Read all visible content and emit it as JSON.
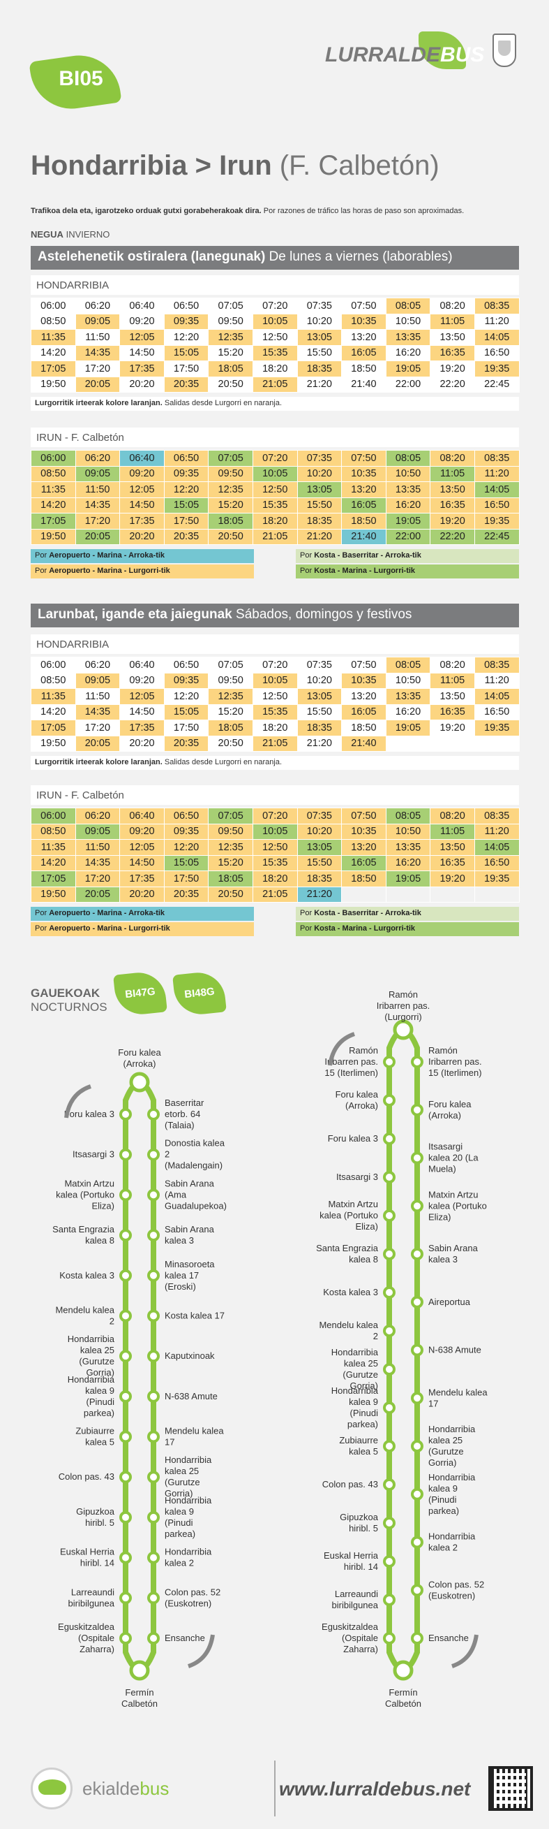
{
  "header": {
    "route_code": "BI05",
    "brand_left": "LURRALDE",
    "brand_right": "BUS"
  },
  "title": {
    "origin": "Hondarribia",
    "separator": ">",
    "destination": "Irun",
    "destination_detail": "(F. Calbetón)"
  },
  "notice": {
    "eu": "Trafikoa dela eta, igarotzeko orduak gutxi gorabeherakoak dira.",
    "es": "Por razones de tráfico las horas de paso son aproximadas."
  },
  "season": {
    "eu": "NEGUA",
    "es": "INVIERNO"
  },
  "weekday": {
    "heading_eu": "Astelehenetik ostiralera (lanegunak)",
    "heading_es": "De lunes a viernes (laborables)",
    "hondarribia": {
      "label": "HONDARRIBIA",
      "rows": [
        [
          "06:00",
          "06:20",
          "06:40",
          "06:50",
          "07:05",
          "07:20",
          "07:35",
          "07:50",
          "08:05",
          "08:20",
          "08:35"
        ],
        [
          "08:50",
          "09:05",
          "09:20",
          "09:35",
          "09:50",
          "10:05",
          "10:20",
          "10:35",
          "10:50",
          "11:05",
          "11:20"
        ],
        [
          "11:35",
          "11:50",
          "12:05",
          "12:20",
          "12:35",
          "12:50",
          "13:05",
          "13:20",
          "13:35",
          "13:50",
          "14:05"
        ],
        [
          "14:20",
          "14:35",
          "14:50",
          "15:05",
          "15:20",
          "15:35",
          "15:50",
          "16:05",
          "16:20",
          "16:35",
          "16:50"
        ],
        [
          "17:05",
          "17:20",
          "17:35",
          "17:50",
          "18:05",
          "18:20",
          "18:35",
          "18:50",
          "19:05",
          "19:20",
          "19:35"
        ],
        [
          "19:50",
          "20:05",
          "20:20",
          "20:35",
          "20:50",
          "21:05",
          "21:20",
          "21:40",
          "22:00",
          "22:20",
          "22:45"
        ]
      ],
      "classes": [
        [
          "",
          "",
          "",
          "",
          "",
          "",
          "",
          "",
          "o",
          "",
          "o"
        ],
        [
          "",
          "o",
          "",
          "o",
          "",
          "o",
          "",
          "o",
          "",
          "o",
          ""
        ],
        [
          "o",
          "",
          "o",
          "",
          "o",
          "",
          "o",
          "",
          "o",
          "",
          "o"
        ],
        [
          "",
          "o",
          "",
          "o",
          "",
          "o",
          "",
          "o",
          "",
          "o",
          ""
        ],
        [
          "o",
          "",
          "o",
          "",
          "o",
          "",
          "o",
          "",
          "o",
          "",
          "o"
        ],
        [
          "",
          "o",
          "",
          "o",
          "",
          "o",
          "",
          "",
          "",
          "",
          ""
        ]
      ],
      "note_eu": "Lurgorritik irteerak kolore laranjan.",
      "note_es": "Salidas desde Lurgorri en naranja."
    },
    "irun": {
      "label": "IRUN - F. Calbetón",
      "rows": [
        [
          "06:00",
          "06:20",
          "06:40",
          "06:50",
          "07:05",
          "07:20",
          "07:35",
          "07:50",
          "08:05",
          "08:20",
          "08:35"
        ],
        [
          "08:50",
          "09:05",
          "09:20",
          "09:35",
          "09:50",
          "10:05",
          "10:20",
          "10:35",
          "10:50",
          "11:05",
          "11:20"
        ],
        [
          "11:35",
          "11:50",
          "12:05",
          "12:20",
          "12:35",
          "12:50",
          "13:05",
          "13:20",
          "13:35",
          "13:50",
          "14:05"
        ],
        [
          "14:20",
          "14:35",
          "14:50",
          "15:05",
          "15:20",
          "15:35",
          "15:50",
          "16:05",
          "16:20",
          "16:35",
          "16:50"
        ],
        [
          "17:05",
          "17:20",
          "17:35",
          "17:50",
          "18:05",
          "18:20",
          "18:35",
          "18:50",
          "19:05",
          "19:20",
          "19:35"
        ],
        [
          "19:50",
          "20:05",
          "20:20",
          "20:35",
          "20:50",
          "21:05",
          "21:20",
          "21:40",
          "22:00",
          "22:20",
          "22:45"
        ]
      ],
      "classes": [
        [
          "g",
          "o",
          "b",
          "o",
          "g",
          "o",
          "o",
          "o",
          "g",
          "o",
          "o"
        ],
        [
          "o",
          "g",
          "o",
          "o",
          "o",
          "g",
          "o",
          "o",
          "o",
          "g",
          "o"
        ],
        [
          "o",
          "o",
          "o",
          "o",
          "o",
          "o",
          "g",
          "o",
          "o",
          "o",
          "g"
        ],
        [
          "o",
          "o",
          "o",
          "g",
          "o",
          "o",
          "o",
          "g",
          "o",
          "o",
          "o"
        ],
        [
          "g",
          "o",
          "o",
          "o",
          "g",
          "o",
          "o",
          "o",
          "g",
          "o",
          "o"
        ],
        [
          "o",
          "g",
          "o",
          "o",
          "o",
          "o",
          "o",
          "b",
          "g",
          "g",
          "g"
        ]
      ],
      "legend": [
        {
          "text": "Por",
          "bold": "Aeropuerto - Marina - Arroka-tik",
          "cls": "bl"
        },
        {
          "text": "Por",
          "bold": "Kosta - Baserritar - Arroka-tik",
          "cls": "lg"
        },
        {
          "text": "Por",
          "bold": "Aeropuerto - Marina - Lurgorri-tik",
          "cls": "or"
        },
        {
          "text": "Por",
          "bold": "Kosta - Marina - Lurgorri-tik",
          "cls": "gr"
        }
      ]
    }
  },
  "weekend": {
    "heading_eu": "Larunbat, igande eta jaiegunak",
    "heading_es": "Sábados, domingos y festivos",
    "hondarribia": {
      "label": "HONDARRIBIA",
      "rows": [
        [
          "06:00",
          "06:20",
          "06:40",
          "06:50",
          "07:05",
          "07:20",
          "07:35",
          "07:50",
          "08:05",
          "08:20",
          "08:35"
        ],
        [
          "08:50",
          "09:05",
          "09:20",
          "09:35",
          "09:50",
          "10:05",
          "10:20",
          "10:35",
          "10:50",
          "11:05",
          "11:20"
        ],
        [
          "11:35",
          "11:50",
          "12:05",
          "12:20",
          "12:35",
          "12:50",
          "13:05",
          "13:20",
          "13:35",
          "13:50",
          "14:05"
        ],
        [
          "14:20",
          "14:35",
          "14:50",
          "15:05",
          "15:20",
          "15:35",
          "15:50",
          "16:05",
          "16:20",
          "16:35",
          "16:50"
        ],
        [
          "17:05",
          "17:20",
          "17:35",
          "17:50",
          "18:05",
          "18:20",
          "18:35",
          "18:50",
          "19:05",
          "19:20",
          "19:35"
        ],
        [
          "19:50",
          "20:05",
          "20:20",
          "20:35",
          "20:50",
          "21:05",
          "21:20",
          "21:40",
          "",
          "",
          ""
        ]
      ],
      "classes": [
        [
          "",
          "",
          "",
          "",
          "",
          "",
          "",
          "",
          "o",
          "",
          "o"
        ],
        [
          "",
          "o",
          "",
          "o",
          "",
          "o",
          "",
          "o",
          "",
          "o",
          ""
        ],
        [
          "o",
          "",
          "o",
          "",
          "o",
          "",
          "o",
          "",
          "o",
          "",
          "o"
        ],
        [
          "",
          "o",
          "",
          "o",
          "",
          "o",
          "",
          "o",
          "",
          "o",
          ""
        ],
        [
          "o",
          "",
          "o",
          "",
          "o",
          "",
          "o",
          "",
          "o",
          "",
          "o"
        ],
        [
          "",
          "o",
          "",
          "o",
          "",
          "o",
          "",
          "o",
          "",
          "",
          ""
        ]
      ],
      "note_eu": "Lurgorritik irteerak kolore laranjan.",
      "note_es": "Salidas desde Lurgorri en naranja."
    },
    "irun": {
      "label": "IRUN - F. Calbetón",
      "rows": [
        [
          "06:00",
          "06:20",
          "06:40",
          "06:50",
          "07:05",
          "07:20",
          "07:35",
          "07:50",
          "08:05",
          "08:20",
          "08:35"
        ],
        [
          "08:50",
          "09:05",
          "09:20",
          "09:35",
          "09:50",
          "10:05",
          "10:20",
          "10:35",
          "10:50",
          "11:05",
          "11:20"
        ],
        [
          "11:35",
          "11:50",
          "12:05",
          "12:20",
          "12:35",
          "12:50",
          "13:05",
          "13:20",
          "13:35",
          "13:50",
          "14:05"
        ],
        [
          "14:20",
          "14:35",
          "14:50",
          "15:05",
          "15:20",
          "15:35",
          "15:50",
          "16:05",
          "16:20",
          "16:35",
          "16:50"
        ],
        [
          "17:05",
          "17:20",
          "17:35",
          "17:50",
          "18:05",
          "18:20",
          "18:35",
          "18:50",
          "19:05",
          "19:20",
          "19:35"
        ],
        [
          "19:50",
          "20:05",
          "20:20",
          "20:35",
          "20:50",
          "21:05",
          "21:20",
          "",
          "",
          "",
          ""
        ]
      ],
      "classes": [
        [
          "g",
          "o",
          "o",
          "o",
          "g",
          "o",
          "o",
          "o",
          "g",
          "o",
          "o"
        ],
        [
          "o",
          "g",
          "o",
          "o",
          "o",
          "g",
          "o",
          "o",
          "o",
          "g",
          "o"
        ],
        [
          "o",
          "o",
          "o",
          "o",
          "o",
          "o",
          "g",
          "o",
          "o",
          "o",
          "g"
        ],
        [
          "o",
          "o",
          "o",
          "g",
          "o",
          "o",
          "o",
          "g",
          "o",
          "o",
          "o"
        ],
        [
          "g",
          "o",
          "o",
          "o",
          "g",
          "o",
          "o",
          "o",
          "g",
          "o",
          "o"
        ],
        [
          "o",
          "g",
          "o",
          "o",
          "o",
          "o",
          "b",
          "e",
          "e",
          "e",
          "e"
        ]
      ],
      "legend": [
        {
          "text": "Por",
          "bold": "Aeropuerto - Marina - Arroka-tik",
          "cls": "bl"
        },
        {
          "text": "Por",
          "bold": "Kosta - Baserritar - Arroka-tik",
          "cls": "lg"
        },
        {
          "text": "Por",
          "bold": "Aeropuerto - Marina - Lurgorri-tik",
          "cls": "or"
        },
        {
          "text": "Por",
          "bold": "Kosta - Marina - Lurgorri-tik",
          "cls": "gr"
        }
      ]
    }
  },
  "night": {
    "title_eu": "GAUEKOAK",
    "title_es": "NOCTURNOS",
    "badges": [
      "BI47G",
      "BI48G"
    ],
    "loop1": {
      "top": "Foru kalea (Arroka)",
      "bottom": "Fermín Calbetón",
      "left": [
        "Foru kalea 3",
        "Itsasargi 3",
        "Matxin Artzu kalea (Portuko Eliza)",
        "Santa Engrazia kalea 8",
        "Kosta kalea 3",
        "Mendelu kalea 2",
        "Hondarribia kalea 25 (Gurutze Gorria)",
        "Hondarribia kalea 9 (Pinudi parkea)",
        "Zubiaurre kalea 5",
        "Colon pas. 43",
        "Gipuzkoa hiribl. 5",
        "Euskal Herria hiribl. 14",
        "Larreaundi biribilgunea",
        "Eguskitzaldea (Ospitale Zaharra)"
      ],
      "right": [
        "Baserritar etorb. 64 (Talaia)",
        "Donostia kalea 2 (Madalengain)",
        "Sabin Arana (Ama Guadalupekoa)",
        "Sabin Arana kalea 3",
        "Minasoroeta kalea 17 (Eroski)",
        "Kosta kalea 17",
        "Kaputxinoak",
        "N-638 Amute",
        "Mendelu kalea 17",
        "Hondarribia kalea 25 (Gurutze Gorria)",
        "Hondarribia kalea 9 (Pinudi parkea)",
        "Hondarribia kalea 2",
        "Colon pas. 52 (Euskotren)",
        "Ensanche"
      ]
    },
    "loop2": {
      "top": "Ramón Iribarren pas. (Lurgorri)",
      "bottom": "Fermín Calbetón",
      "left": [
        "Ramón Iribarren pas. 15 (Iterlimen)",
        "Foru kalea (Arroka)",
        "Foru kalea 3",
        "Itsasargi 3",
        "Matxin Artzu kalea (Portuko Eliza)",
        "Santa Engrazia kalea 8",
        "Kosta kalea 3",
        "Mendelu kalea 2",
        "Hondarribia kalea 25 (Gurutze Gorria)",
        "Hondarribia kalea 9 (Pinudi parkea)",
        "Zubiaurre kalea 5",
        "Colon pas. 43",
        "Gipuzkoa hiribl. 5",
        "Euskal Herria hiribl. 14",
        "Larreaundi biribilgunea",
        "Eguskitzaldea (Ospitale Zaharra)"
      ],
      "right": [
        "Ramón Iribarren pas. 15 (Iterlimen)",
        "Foru kalea (Arroka)",
        "Itsasargi kalea 20 (La Muela)",
        "Matxin Artzu kalea (Portuko Eliza)",
        "Sabin Arana kalea 3",
        "Aireportua",
        "N-638 Amute",
        "Mendelu kalea 17",
        "Hondarribia kalea 25 (Gurutze Gorria)",
        "Hondarribia kalea 9 (Pinudi parkea)",
        "Hondarribia kalea 2",
        "Colon pas. 52 (Euskotren)",
        "Ensanche"
      ]
    }
  },
  "footer": {
    "operator_left": "ekialde",
    "operator_right": "bus",
    "url": "www.lurraldebus.net"
  },
  "colors": {
    "accent": "#8dc63f",
    "orange": "#fcd581",
    "green": "#a7cf74",
    "blue": "#74c6d2",
    "bar": "#7b7c7e"
  }
}
